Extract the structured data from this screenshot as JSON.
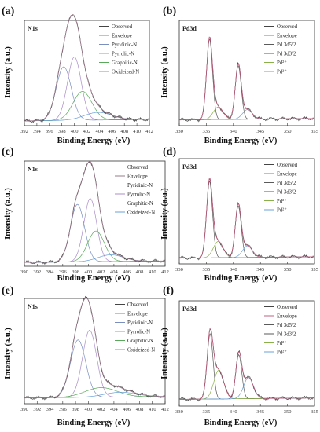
{
  "chart_data": [
    {
      "panel_label": "(a)",
      "type": "line",
      "core_level": "N1s",
      "xlabel": "Binding Energy (eV)",
      "ylabel": "Intensity (a.u.)",
      "xlim": [
        392,
        412
      ],
      "xticks": [
        392,
        394,
        396,
        398,
        400,
        402,
        404,
        406,
        408,
        410,
        412
      ],
      "legend": [
        "Observed",
        "Envelope",
        "Pyridinic-N",
        "Pyrrolic-N",
        "Graphitic-N",
        "Oxideized-N"
      ],
      "legend_colors": [
        "#444444",
        "#9a7a8a",
        "#7a8fc0",
        "#a98cc9",
        "#5aa85a",
        "#6aa0d8"
      ],
      "peaks": [
        {
          "name": "Pyridinic-N",
          "center": 398.3,
          "height": 0.56,
          "width": 1.2
        },
        {
          "name": "Pyrrolic-N",
          "center": 400.0,
          "height": 0.66,
          "width": 1.1
        },
        {
          "name": "Graphitic-N",
          "center": 401.3,
          "height": 0.3,
          "width": 1.5
        },
        {
          "name": "Oxideized-N",
          "center": 403.8,
          "height": 0.08,
          "width": 2.2
        }
      ],
      "baseline": 0.05
    },
    {
      "panel_label": "(b)",
      "type": "line",
      "core_level": "Pd3d",
      "xlabel": "Binding Energy (eV)",
      "ylabel": "Intensity (a.u.)",
      "xlim": [
        330,
        355
      ],
      "xticks": [
        330,
        335,
        340,
        345,
        350,
        355
      ],
      "legend": [
        "Observed",
        "Envelope",
        "Pd 3d5/2",
        "Pd 3d3/2",
        "Pd²⁺",
        "Pd²⁺"
      ],
      "legend_colors": [
        "#444444",
        "#c06080",
        "#5a5a5a",
        "#5a5a5a",
        "#8ab04a",
        "#6aa0d8"
      ],
      "peaks": [
        {
          "name": "Pd 3d5/2",
          "center": 335.6,
          "height": 0.84,
          "width": 0.55
        },
        {
          "name": "Pd 3d3/2",
          "center": 340.9,
          "height": 0.56,
          "width": 0.55
        },
        {
          "name": "Pd²⁺",
          "center": 337.2,
          "height": 0.13,
          "width": 0.9
        },
        {
          "name": "Pd²⁺",
          "center": 342.6,
          "height": 0.1,
          "width": 0.9
        }
      ],
      "baseline": 0.06
    },
    {
      "panel_label": "(c)",
      "type": "line",
      "core_level": "N1s",
      "xlabel": "Binding Energy (eV)",
      "ylabel": "Intensity (a.u.)",
      "xlim": [
        390,
        412
      ],
      "xticks": [
        390,
        392,
        394,
        396,
        398,
        400,
        402,
        404,
        406,
        408,
        410,
        412
      ],
      "legend": [
        "Observed",
        "Envelope",
        "Pyridinic-N",
        "Pyrrolic-N",
        "Graphitic-N",
        "Oxideized-N"
      ],
      "legend_colors": [
        "#444444",
        "#9a7a8a",
        "#7a8fc0",
        "#a98cc9",
        "#5aa85a",
        "#6aa0d8"
      ],
      "peaks": [
        {
          "name": "Pyridinic-N",
          "center": 398.3,
          "height": 0.6,
          "width": 1.1
        },
        {
          "name": "Pyrrolic-N",
          "center": 400.3,
          "height": 0.66,
          "width": 1.0
        },
        {
          "name": "Graphitic-N",
          "center": 401.2,
          "height": 0.32,
          "width": 1.3
        },
        {
          "name": "Oxideized-N",
          "center": 403.5,
          "height": 0.07,
          "width": 2.0
        }
      ],
      "baseline": 0.04
    },
    {
      "panel_label": "(d)",
      "type": "line",
      "core_level": "Pd3d",
      "xlabel": "Binding Energy (eV)",
      "ylabel": "Intensity (a.u.)",
      "xlim": [
        330,
        355
      ],
      "xticks": [
        330,
        335,
        340,
        345,
        350,
        355
      ],
      "legend": [
        "Observed",
        "Envelope",
        "Pd 3d5/2",
        "Pd 3d3/2",
        "Pd²⁺",
        "Pd²⁺"
      ],
      "legend_colors": [
        "#444444",
        "#c06080",
        "#5a5a5a",
        "#5a5a5a",
        "#8ab04a",
        "#6aa0d8"
      ],
      "peaks": [
        {
          "name": "Pd 3d5/2",
          "center": 335.6,
          "height": 0.8,
          "width": 0.55
        },
        {
          "name": "Pd 3d3/2",
          "center": 340.9,
          "height": 0.54,
          "width": 0.55
        },
        {
          "name": "Pd²⁺",
          "center": 337.2,
          "height": 0.17,
          "width": 0.9
        },
        {
          "name": "Pd²⁺",
          "center": 342.6,
          "height": 0.12,
          "width": 0.9
        }
      ],
      "baseline": 0.06
    },
    {
      "panel_label": "(e)",
      "type": "line",
      "core_level": "N1s",
      "xlabel": "Binding Energy (eV)",
      "ylabel": "Intensity (a.u.)",
      "xlim": [
        390,
        412
      ],
      "xticks": [
        390,
        392,
        394,
        396,
        398,
        400,
        402,
        404,
        406,
        408,
        410,
        412
      ],
      "legend": [
        "Observed",
        "Envelope",
        "Pyridinic-N",
        "Pyrrolic-N",
        "Graphitic-N",
        "Oxideized-N"
      ],
      "legend_colors": [
        "#444444",
        "#9a7a8a",
        "#7a8fc0",
        "#a98cc9",
        "#5aa85a",
        "#6aa0d8"
      ],
      "peaks": [
        {
          "name": "Pyridinic-N",
          "center": 398.4,
          "height": 0.6,
          "width": 1.2
        },
        {
          "name": "Pyrrolic-N",
          "center": 400.2,
          "height": 0.7,
          "width": 1.1
        },
        {
          "name": "Graphitic-N",
          "center": 402.0,
          "height": 0.1,
          "width": 2.5
        },
        {
          "name": "Oxideized-N",
          "center": 405.0,
          "height": 0.05,
          "width": 2.5
        }
      ],
      "baseline": 0.06
    },
    {
      "panel_label": "(f)",
      "type": "line",
      "core_level": "Pd3d",
      "xlabel": "Binding Energy (eV)",
      "ylabel": "Intensity (a.u.)",
      "xlim": [
        330,
        355
      ],
      "xticks": [
        330,
        335,
        340,
        345,
        350,
        355
      ],
      "legend": [
        "Observed",
        "Envelope",
        "Pd 3d5/2",
        "Pd 3d3/2",
        "Pd²⁺",
        "Pd²⁺"
      ],
      "legend_colors": [
        "#444444",
        "#c06080",
        "#5a5a5a",
        "#5a5a5a",
        "#8ab04a",
        "#6aa0d8"
      ],
      "peaks": [
        {
          "name": "Pd 3d5/2",
          "center": 335.7,
          "height": 0.68,
          "width": 0.55
        },
        {
          "name": "Pd 3d3/2",
          "center": 341.0,
          "height": 0.46,
          "width": 0.55
        },
        {
          "name": "Pd²⁺",
          "center": 337.3,
          "height": 0.3,
          "width": 0.9
        },
        {
          "name": "Pd²⁺",
          "center": 342.8,
          "height": 0.22,
          "width": 0.9
        }
      ],
      "baseline": 0.07
    }
  ]
}
